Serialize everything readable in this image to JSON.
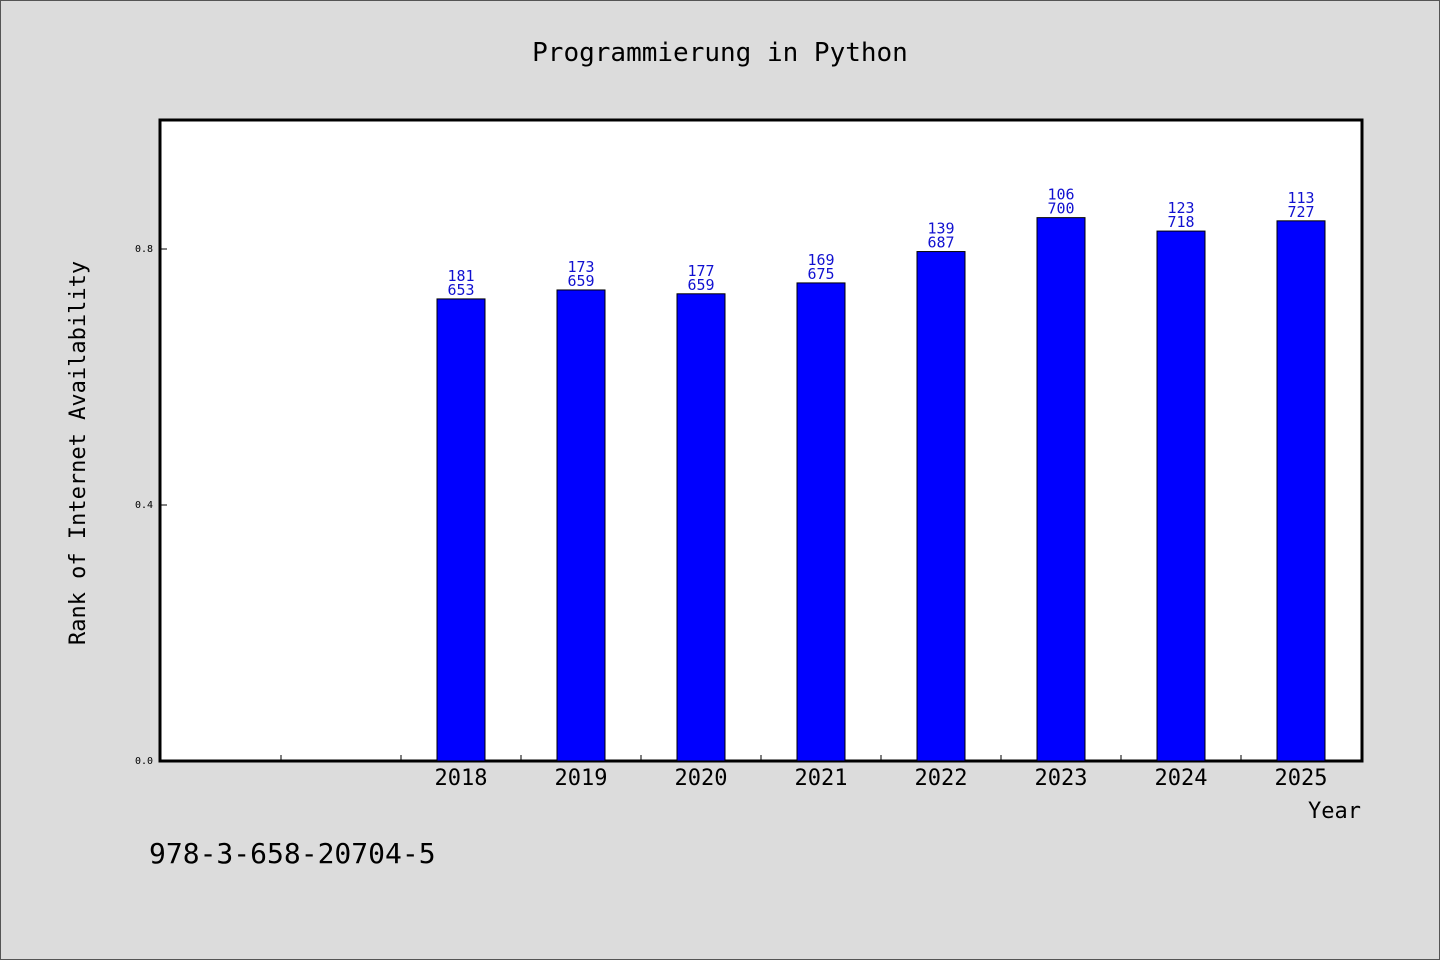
{
  "chart_data": {
    "type": "bar",
    "title": "Programmierung in Python",
    "xlabel": "Year",
    "ylabel": "Rank of Internet Availability",
    "categories": [
      "",
      "",
      "2018",
      "2019",
      "2020",
      "2021",
      "2022",
      "2023",
      "2024",
      "2025"
    ],
    "series": [
      {
        "values": [
          null,
          null,
          0.722,
          0.736,
          0.73,
          0.747,
          0.796,
          0.849,
          0.828,
          0.844
        ],
        "labels": [
          null,
          null,
          "181\n653",
          "173\n659",
          "177\n659",
          "169\n675",
          "139\n687",
          "106\n700",
          "123\n718",
          "113\n727"
        ]
      }
    ],
    "ylim": [
      0,
      1.0
    ],
    "yticks": [
      0.0,
      0.4,
      0.8
    ],
    "ytick_labels": [
      "0.0",
      "0.4",
      "0.8"
    ],
    "grid": false,
    "colors": {
      "bar": "#0000ff",
      "bar_label": "#1010d0",
      "background": "#dcdcdc",
      "plot_area": "#ffffff"
    }
  },
  "footer": {
    "isbn": "978-3-658-20704-5"
  }
}
